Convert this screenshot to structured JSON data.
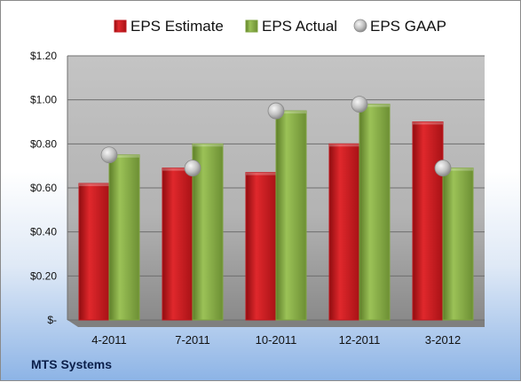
{
  "company": "MTS Systems",
  "chart_data": {
    "type": "bar",
    "categories": [
      "4-2011",
      "7-2011",
      "10-2011",
      "12-2011",
      "3-2012"
    ],
    "series": [
      {
        "name": "EPS Estimate",
        "type": "bar",
        "color": "#c0161c",
        "values": [
          0.62,
          0.69,
          0.67,
          0.8,
          0.9
        ]
      },
      {
        "name": "EPS Actual",
        "type": "bar",
        "color": "#7ea33e",
        "values": [
          0.75,
          0.8,
          0.95,
          0.98,
          0.69
        ]
      },
      {
        "name": "EPS GAAP",
        "type": "scatter",
        "color": "#b0b0b0",
        "values": [
          0.75,
          0.69,
          0.95,
          0.98,
          0.69
        ]
      }
    ],
    "y_ticks": [
      "$-",
      "$0.20",
      "$0.40",
      "$0.60",
      "$0.80",
      "$1.00",
      "$1.20"
    ],
    "y_tick_values": [
      0,
      0.2,
      0.4,
      0.6,
      0.8,
      1.0,
      1.2
    ],
    "ylim": [
      0,
      1.2
    ],
    "grid": true,
    "legend_position": "top"
  }
}
